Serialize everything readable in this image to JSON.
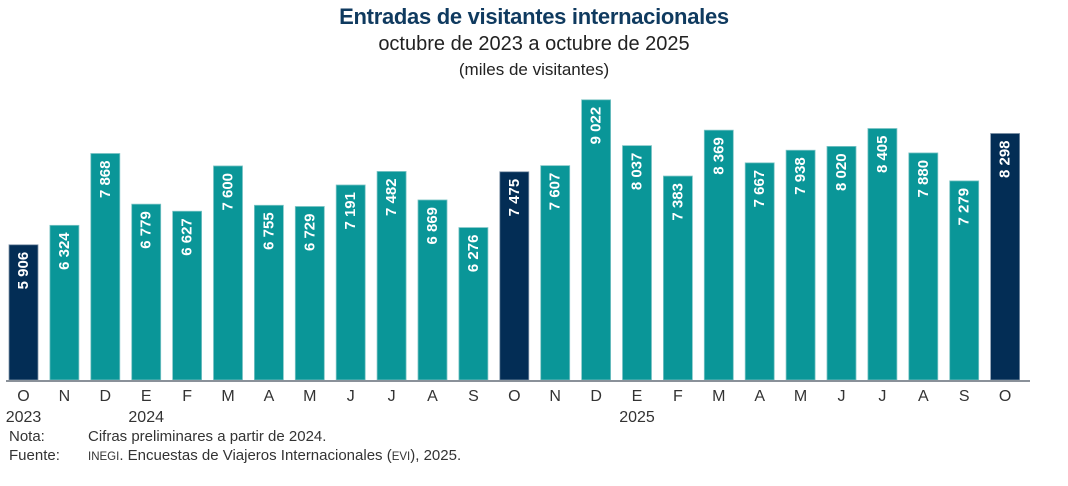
{
  "chart_data": {
    "type": "bar",
    "title": "Entradas de visitantes internacionales",
    "subtitle": "octubre de 2023 a octubre de 2025",
    "units": "(miles de visitantes)",
    "xlabel": "",
    "ylabel": "",
    "ylim": [
      3000,
      9500
    ],
    "grid": false,
    "legend": "none",
    "categories": [
      "O",
      "N",
      "D",
      "E",
      "F",
      "M",
      "A",
      "M",
      "J",
      "J",
      "A",
      "S",
      "O",
      "N",
      "D",
      "E",
      "F",
      "M",
      "A",
      "M",
      "J",
      "J",
      "A",
      "S",
      "O"
    ],
    "year_labels": [
      {
        "index": 0,
        "label": "2023"
      },
      {
        "index": 3,
        "label": "2024"
      },
      {
        "index": 15,
        "label": "2025"
      }
    ],
    "values": [
      5906,
      6324,
      7868,
      6779,
      6627,
      7600,
      6755,
      6729,
      7191,
      7482,
      6869,
      6276,
      7475,
      7607,
      9022,
      8037,
      7383,
      8369,
      7667,
      7938,
      8020,
      8405,
      7880,
      7279,
      8298
    ],
    "data_labels": [
      "5 906",
      "6 324",
      "7 868",
      "6 779",
      "6 627",
      "7 600",
      "6 755",
      "6 729",
      "7 191",
      "7 482",
      "6 869",
      "6 276",
      "7 475",
      "7 607",
      "9 022",
      "8 037",
      "7 383",
      "8 369",
      "7 667",
      "7 938",
      "8 020",
      "8 405",
      "7 880",
      "7 279",
      "8 298"
    ],
    "highlighted": [
      0,
      12,
      24
    ],
    "colors": {
      "bar": "#0a9698",
      "highlight": "#032d55",
      "axis": "#8a9199",
      "label": "#ffffff"
    }
  },
  "notes": {
    "nota_label": "Nota:",
    "nota_text": "Cifras preliminares a partir de 2024.",
    "fuente_label": "Fuente:",
    "fuente_org": "INEGI",
    "fuente_text_1": ". Encuestas de Viajeros Internacionales (",
    "fuente_abbr": "EVI",
    "fuente_text_2": "), 2025."
  }
}
